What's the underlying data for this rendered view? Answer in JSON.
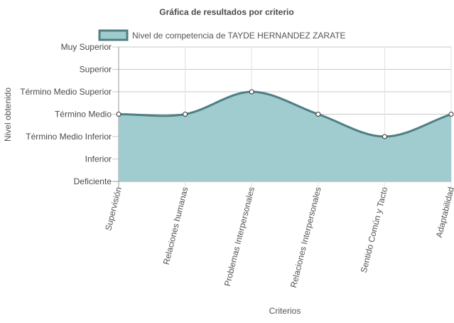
{
  "colors": {
    "fill": "#a0cccf",
    "line": "#4f7f82",
    "grid": "#c9c9c9",
    "axis": "#999999",
    "text": "#555555",
    "title": "#4a4a4a",
    "point_fill": "#ffffff",
    "point_stroke": "#333333"
  },
  "chart_data": {
    "type": "area",
    "title": "Gráfica de resultados por criterio",
    "xlabel": "Criterios",
    "ylabel": "Nivel obtenido",
    "categories": [
      "Supervisión",
      "Relaciones humanas",
      "Problemas Interpersonales",
      "Relaciones Interpersonales",
      "Sentido Común y Tacto",
      "Adaptabilidad"
    ],
    "y_levels": [
      "Deficiente",
      "Inferior",
      "Término Medio Inferior",
      "Término Medio",
      "Término Medio Superior",
      "Superior",
      "Muy Superior"
    ],
    "ylim": [
      0,
      6
    ],
    "grid": true,
    "legend_position": "top",
    "series": [
      {
        "name": "Nivel de competencia de TAYDE HERNANDEZ ZARATE",
        "values": [
          3,
          3,
          4,
          3,
          2,
          3
        ]
      }
    ]
  }
}
